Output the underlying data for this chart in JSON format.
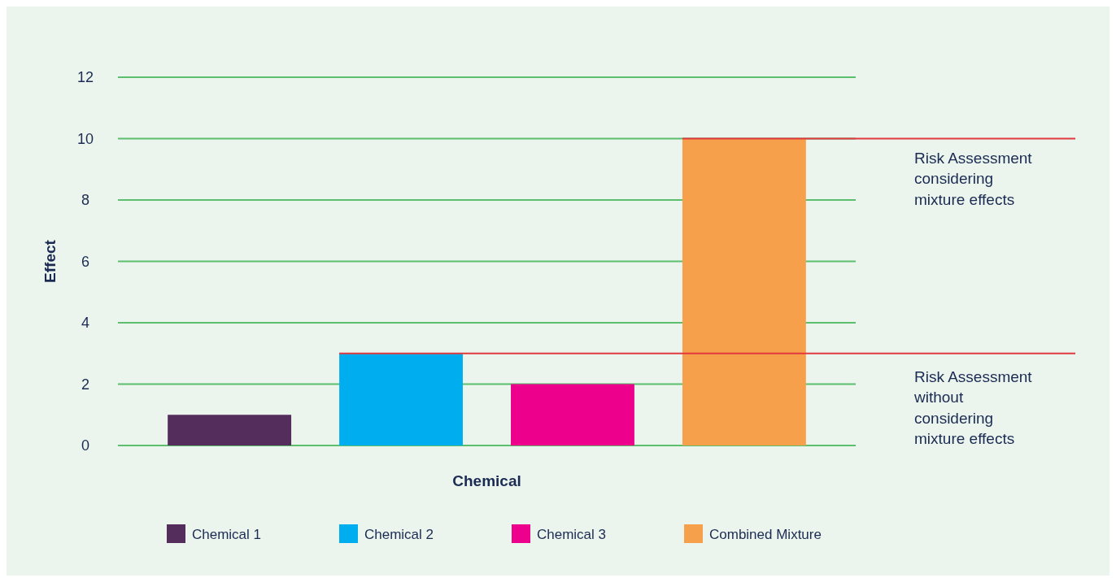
{
  "chart_data": {
    "type": "bar",
    "xlabel": "Chemical",
    "ylabel": "Effect",
    "categories": [
      null,
      null,
      null,
      null
    ],
    "series": [
      {
        "name": "Chemical 1",
        "color": "#542d5c",
        "values": [
          1,
          null,
          null,
          null
        ]
      },
      {
        "name": "Chemical 2",
        "color": "#00aeef",
        "values": [
          null,
          3,
          null,
          null
        ]
      },
      {
        "name": "Chemical 3",
        "color": "#ec008c",
        "values": [
          null,
          null,
          2,
          null
        ]
      },
      {
        "name": "Combined Mixture",
        "color": "#f7a04b",
        "values": [
          null,
          null,
          null,
          10
        ]
      }
    ],
    "ylim": [
      0,
      12
    ],
    "yticks": [
      0,
      2,
      4,
      6,
      8,
      10,
      12
    ],
    "grid": "y",
    "legend": "bottom",
    "ref_lines": [
      {
        "axis": "y",
        "value": 10,
        "label": "Risk Assessment considering mixture effects",
        "color": "#e0393e"
      },
      {
        "axis": "y",
        "value": 3,
        "label": "Risk Assessment without considering mixture effects",
        "color": "#e0393e"
      }
    ]
  }
}
